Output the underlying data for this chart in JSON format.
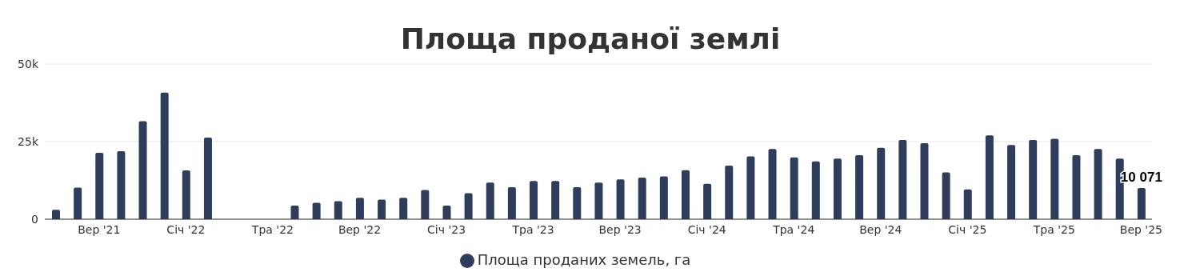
{
  "chart_data": {
    "type": "bar",
    "title": "Площа проданої землі",
    "categories": [
      null,
      null,
      "Вер '21",
      null,
      null,
      null,
      "Січ '22",
      null,
      null,
      null,
      "Тра '22",
      null,
      null,
      null,
      "Вер '22",
      null,
      null,
      null,
      "Січ '23",
      null,
      null,
      null,
      "Тра '23",
      null,
      null,
      null,
      "Вер '23",
      null,
      null,
      null,
      "Січ '24",
      null,
      null,
      null,
      "Тра '24",
      null,
      null,
      null,
      "Вер '24",
      null,
      null,
      null,
      "Січ '25",
      null,
      null,
      null,
      "Тра '25",
      null,
      null,
      null,
      "Вер '25"
    ],
    "series": [
      {
        "name": "Площа проданих земель, га",
        "color": "#2e3d5c",
        "values": [
          3000,
          10200,
          21400,
          21900,
          31600,
          40800,
          15700,
          26300,
          null,
          null,
          null,
          4400,
          5300,
          5800,
          6900,
          6300,
          6900,
          9400,
          4400,
          8400,
          11800,
          10300,
          12300,
          12300,
          10300,
          11800,
          12800,
          13400,
          13800,
          15800,
          11400,
          17300,
          20200,
          22600,
          19900,
          18600,
          19500,
          20600,
          23000,
          25500,
          24500,
          15100,
          9600,
          27000,
          23900,
          25500,
          25900,
          20600,
          22600,
          19500,
          10071
        ],
        "value_labels": [
          null,
          null,
          null,
          null,
          null,
          null,
          null,
          null,
          null,
          null,
          null,
          null,
          null,
          null,
          null,
          null,
          null,
          null,
          null,
          null,
          null,
          null,
          null,
          null,
          null,
          null,
          null,
          null,
          null,
          null,
          null,
          null,
          null,
          null,
          null,
          null,
          null,
          null,
          null,
          null,
          null,
          null,
          null,
          null,
          null,
          null,
          null,
          null,
          null,
          null,
          "10 071"
        ]
      }
    ],
    "ylim": [
      0,
      50000
    ],
    "yticks": [
      0,
      {
        "value": 25000,
        "label": "25k"
      },
      {
        "value": 50000,
        "label": "50k"
      }
    ],
    "grid": "y",
    "legend": "bottom"
  }
}
